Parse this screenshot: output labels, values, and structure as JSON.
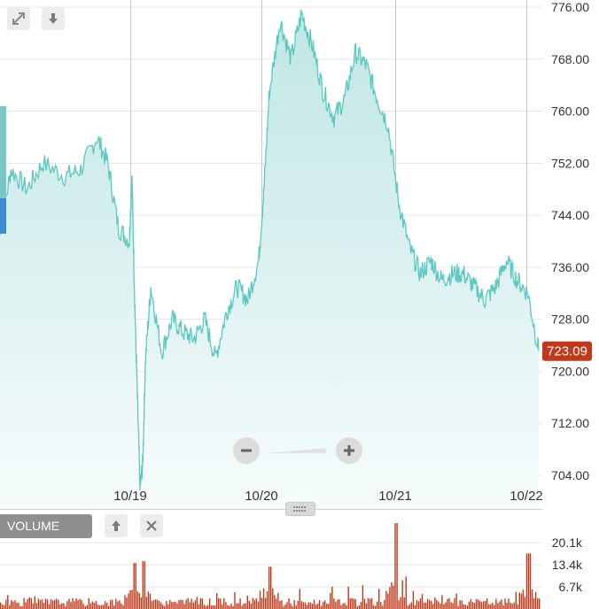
{
  "toolbar": {
    "expand_icon": "expand-arrows-icon",
    "download_icon": "down-arrow-icon"
  },
  "volume_panel": {
    "label": "VOLUME",
    "up_icon": "up-arrow-icon",
    "close_icon": "close-x-icon"
  },
  "zoom": {
    "minus_icon": "minus-icon",
    "plus_icon": "plus-icon"
  },
  "colors": {
    "price_line": "#5bc8c2",
    "price_fill_top": "#bfe6e4",
    "price_fill_bottom": "#f7fcfc",
    "volume_bar": "#c0391b",
    "last_price_badge": "#c0391b",
    "grid": "#e6e6e6",
    "day_divider": "#c8c8c8"
  },
  "chart_data": [
    {
      "type": "area",
      "ylim": [
        700,
        776
      ],
      "y_ticks": [
        "776.00",
        "768.00",
        "760.00",
        "752.00",
        "744.00",
        "736.00",
        "728.00",
        "720.00",
        "712.00",
        "704.00"
      ],
      "x_ticks": [
        "10/19",
        "10/20",
        "10/21",
        "10/22"
      ],
      "last_value_label": "723.09",
      "x": [
        0,
        0.02,
        0.05,
        0.08,
        0.12,
        0.15,
        0.18,
        0.2,
        0.22,
        0.24,
        0.245,
        0.25,
        0.255,
        0.26,
        0.265,
        0.27,
        0.28,
        0.3,
        0.32,
        0.34,
        0.36,
        0.38,
        0.4,
        0.42,
        0.44,
        0.46,
        0.48,
        0.49,
        0.5,
        0.52,
        0.54,
        0.56,
        0.58,
        0.6,
        0.62,
        0.64,
        0.66,
        0.68,
        0.7,
        0.72,
        0.74,
        0.76,
        0.78,
        0.8,
        0.82,
        0.84,
        0.86,
        0.88,
        0.9,
        0.92,
        0.94,
        0.96,
        0.98,
        1.0
      ],
      "values": [
        741,
        751,
        748,
        752,
        750,
        751,
        756,
        752,
        742,
        740,
        750,
        731,
        716,
        702,
        706,
        722,
        733,
        723,
        728,
        726,
        725,
        728,
        722,
        729,
        733,
        731,
        737,
        748,
        763,
        774,
        768,
        775,
        770,
        763,
        759,
        762,
        769,
        767,
        762,
        758,
        746,
        739,
        735,
        737,
        734,
        735,
        735,
        733,
        731,
        733,
        737,
        734,
        732,
        723.09
      ]
    },
    {
      "type": "bar",
      "title": "VOLUME",
      "ylim": [
        0,
        26800
      ],
      "y_ticks": [
        "20.1k",
        "13.4k",
        "6.7k"
      ],
      "peaks": [
        {
          "x": 0.25,
          "value": 13900
        },
        {
          "x": 0.265,
          "value": 14500
        },
        {
          "x": 0.5,
          "value": 12800
        },
        {
          "x": 0.735,
          "value": 26000
        },
        {
          "x": 0.98,
          "value": 16800
        }
      ]
    }
  ]
}
